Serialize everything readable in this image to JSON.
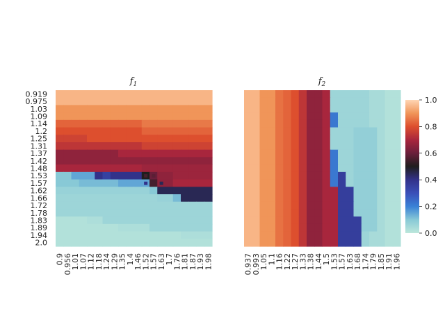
{
  "chart_data": [
    {
      "type": "heatmap",
      "title_base": "f",
      "title_sub": "1",
      "y_ticks": [
        "0.919",
        "0.975",
        "1.03",
        "1.09",
        "1.14",
        "1.2",
        "1.25",
        "1.31",
        "1.37",
        "1.42",
        "1.48",
        "1.53",
        "1.57",
        "1.62",
        "1.66",
        "1.72",
        "1.78",
        "1.83",
        "1.89",
        "1.94",
        "2.0"
      ],
      "x_ticks": [
        "0.9",
        "0.956",
        "1.01",
        "1.07",
        "1.12",
        "1.18",
        "1.24",
        "1.29",
        "1.35",
        "1.4",
        "1.46",
        "1.52",
        "1.57",
        "1.63",
        "1.7",
        "1.76",
        "1.81",
        "1.87",
        "1.93",
        "1.98"
      ],
      "description_rows": [
        [
          0.95,
          0.95,
          0.95,
          0.95,
          0.95,
          0.95,
          0.95,
          0.95,
          0.95,
          0.95,
          0.95,
          0.95,
          0.95,
          0.95,
          0.95,
          0.95,
          0.95,
          0.95,
          0.95,
          0.95
        ],
        [
          0.95,
          0.95,
          0.95,
          0.95,
          0.95,
          0.95,
          0.95,
          0.95,
          0.95,
          0.95,
          0.95,
          0.95,
          0.95,
          0.95,
          0.95,
          0.95,
          0.95,
          0.95,
          0.95,
          0.95
        ],
        [
          0.9,
          0.9,
          0.9,
          0.9,
          0.9,
          0.9,
          0.9,
          0.9,
          0.9,
          0.9,
          0.9,
          0.9,
          0.9,
          0.9,
          0.9,
          0.9,
          0.9,
          0.9,
          0.9,
          0.9
        ],
        [
          0.9,
          0.9,
          0.9,
          0.9,
          0.9,
          0.9,
          0.9,
          0.9,
          0.9,
          0.9,
          0.9,
          0.9,
          0.9,
          0.9,
          0.9,
          0.9,
          0.9,
          0.9,
          0.9,
          0.9
        ],
        [
          0.83,
          0.83,
          0.83,
          0.83,
          0.83,
          0.83,
          0.83,
          0.83,
          0.83,
          0.83,
          0.83,
          0.86,
          0.86,
          0.86,
          0.86,
          0.86,
          0.86,
          0.86,
          0.86,
          0.86
        ],
        [
          0.8,
          0.8,
          0.8,
          0.8,
          0.8,
          0.8,
          0.8,
          0.8,
          0.8,
          0.8,
          0.8,
          0.83,
          0.83,
          0.83,
          0.83,
          0.83,
          0.83,
          0.83,
          0.83,
          0.83
        ],
        [
          0.77,
          0.77,
          0.77,
          0.77,
          0.8,
          0.8,
          0.8,
          0.8,
          0.8,
          0.8,
          0.8,
          0.8,
          0.8,
          0.8,
          0.8,
          0.8,
          0.8,
          0.8,
          0.8,
          0.8
        ],
        [
          0.74,
          0.74,
          0.74,
          0.74,
          0.74,
          0.74,
          0.74,
          0.74,
          0.74,
          0.74,
          0.74,
          0.77,
          0.77,
          0.77,
          0.77,
          0.77,
          0.77,
          0.77,
          0.77,
          0.77
        ],
        [
          0.66,
          0.66,
          0.66,
          0.66,
          0.66,
          0.66,
          0.66,
          0.66,
          0.7,
          0.7,
          0.7,
          0.7,
          0.7,
          0.7,
          0.7,
          0.7,
          0.7,
          0.7,
          0.7,
          0.7
        ],
        [
          0.66,
          0.66,
          0.66,
          0.66,
          0.66,
          0.66,
          0.66,
          0.66,
          0.66,
          0.66,
          0.66,
          0.66,
          0.66,
          0.66,
          0.66,
          0.66,
          0.66,
          0.66,
          0.66,
          0.66
        ],
        [
          0.7,
          0.7,
          0.7,
          0.7,
          0.7,
          0.7,
          0.7,
          0.7,
          0.7,
          0.7,
          0.7,
          0.68,
          0.68,
          0.68,
          0.68,
          0.68,
          0.68,
          0.68,
          0.68,
          0.68
        ],
        [
          0.1,
          0.1,
          0.15,
          0.15,
          0.15,
          0.4,
          0.35,
          0.4,
          0.4,
          0.4,
          0.4,
          0.5,
          0.6,
          0.66,
          0.66,
          0.68,
          0.68,
          0.68,
          0.68,
          0.68
        ],
        [
          0.1,
          0.1,
          0.1,
          0.12,
          0.12,
          0.12,
          0.12,
          0.12,
          0.15,
          0.15,
          0.15,
          0.15,
          0.55,
          0.66,
          0.66,
          0.7,
          0.7,
          0.7,
          0.7,
          0.7
        ],
        [
          0.07,
          0.07,
          0.07,
          0.07,
          0.07,
          0.07,
          0.07,
          0.07,
          0.07,
          0.07,
          0.07,
          0.07,
          0.1,
          0.45,
          0.45,
          0.45,
          0.45,
          0.45,
          0.45,
          0.45
        ],
        [
          0.06,
          0.06,
          0.06,
          0.06,
          0.06,
          0.06,
          0.06,
          0.06,
          0.06,
          0.06,
          0.06,
          0.06,
          0.06,
          0.07,
          0.07,
          0.12,
          0.45,
          0.45,
          0.45,
          0.45
        ],
        [
          0.06,
          0.06,
          0.06,
          0.06,
          0.06,
          0.06,
          0.06,
          0.06,
          0.06,
          0.06,
          0.06,
          0.06,
          0.06,
          0.06,
          0.06,
          0.06,
          0.06,
          0.06,
          0.06,
          0.06
        ],
        [
          0.06,
          0.06,
          0.06,
          0.06,
          0.06,
          0.06,
          0.06,
          0.06,
          0.06,
          0.06,
          0.06,
          0.06,
          0.06,
          0.06,
          0.06,
          0.06,
          0.06,
          0.06,
          0.06,
          0.06
        ],
        [
          0.02,
          0.02,
          0.02,
          0.02,
          0.03,
          0.03,
          0.06,
          0.06,
          0.06,
          0.06,
          0.06,
          0.06,
          0.06,
          0.06,
          0.06,
          0.06,
          0.06,
          0.06,
          0.06,
          0.06
        ],
        [
          0.02,
          0.02,
          0.02,
          0.02,
          0.02,
          0.02,
          0.02,
          0.02,
          0.03,
          0.03,
          0.03,
          0.03,
          0.06,
          0.06,
          0.06,
          0.06,
          0.06,
          0.06,
          0.06,
          0.06
        ],
        [
          0.02,
          0.02,
          0.02,
          0.02,
          0.02,
          0.02,
          0.02,
          0.02,
          0.02,
          0.02,
          0.02,
          0.02,
          0.02,
          0.02,
          0.02,
          0.02,
          0.03,
          0.03,
          0.03,
          0.03
        ],
        [
          0.02,
          0.02,
          0.02,
          0.02,
          0.02,
          0.02,
          0.02,
          0.02,
          0.02,
          0.02,
          0.02,
          0.02,
          0.02,
          0.02,
          0.02,
          0.02,
          0.02,
          0.02,
          0.02,
          0.02
        ]
      ],
      "overlay_cells": [
        [
          11,
          11,
          0.55
        ],
        [
          11,
          12,
          0.58
        ],
        [
          12,
          11,
          0.4
        ],
        [
          12,
          12,
          0.55
        ],
        [
          12,
          13,
          0.45
        ],
        [
          13,
          13,
          0.45
        ]
      ]
    },
    {
      "type": "heatmap",
      "title_base": "f",
      "title_sub": "2",
      "x_ticks": [
        "0.937",
        "0.993",
        "1.05",
        "1.1",
        "1.16",
        "1.22",
        "1.27",
        "1.33",
        "1.38",
        "1.44",
        "1.5",
        "1.53",
        "1.57",
        "1.63",
        "1.68",
        "1.74",
        "1.79",
        "1.85",
        "1.91",
        "1.96"
      ],
      "columns": [
        {
          "v": 0.95
        },
        {
          "v": 0.95
        },
        {
          "v": 0.9
        },
        {
          "v": 0.9
        },
        {
          "v": 0.85
        },
        {
          "v": 0.83
        },
        {
          "v": 0.8
        },
        {
          "v": 0.74
        },
        {
          "v": 0.66
        },
        {
          "v": 0.66
        },
        {
          "v": 0.7
        },
        {
          "v": 0.06
        },
        {
          "v": 0.06
        },
        {
          "v": 0.06
        },
        {
          "v": 0.06
        },
        {
          "v": 0.06
        },
        {
          "v": 0.04
        },
        {
          "v": 0.04
        },
        {
          "v": 0.02
        },
        {
          "v": 0.02
        }
      ],
      "boundary_rows": [
        {
          "row": 0,
          "col": 11.0
        },
        {
          "row": 4,
          "col": 11.0
        },
        {
          "row": 5,
          "col": 10.8
        },
        {
          "row": 6,
          "col": 10.9
        },
        {
          "row": 7,
          "col": 10.8
        },
        {
          "row": 8,
          "col": 11.0
        },
        {
          "row": 9,
          "col": 11.2
        },
        {
          "row": 10,
          "col": 11.2
        },
        {
          "row": 11,
          "col": 11.4
        },
        {
          "row": 12,
          "col": 11.8
        },
        {
          "row": 13,
          "col": 12.3
        },
        {
          "row": 14,
          "col": 12.6
        },
        {
          "row": 15,
          "col": 12.8
        },
        {
          "row": 16,
          "col": 12.8
        },
        {
          "row": 17,
          "col": 12.9
        },
        {
          "row": 18,
          "col": 12.9
        },
        {
          "row": 19,
          "col": 12.9
        },
        {
          "row": 20,
          "col": 12.9
        }
      ]
    }
  ],
  "colorbar": {
    "ticks": [
      "0.0",
      "0.2",
      "0.4",
      "0.6",
      "0.8",
      "1.0"
    ],
    "tick_values": [
      0.0,
      0.2,
      0.4,
      0.6,
      0.8,
      1.0
    ],
    "vmin": 0.0,
    "vmax": 1.0,
    "palette": "icefire",
    "stops": [
      {
        "v": 0.0,
        "c": "#bde7db"
      },
      {
        "v": 0.1,
        "c": "#88c9d6"
      },
      {
        "v": 0.2,
        "c": "#3a82d6"
      },
      {
        "v": 0.3,
        "c": "#3a4fb8"
      },
      {
        "v": 0.4,
        "c": "#32328a"
      },
      {
        "v": 0.5,
        "c": "#1f1e1e"
      },
      {
        "v": 0.6,
        "c": "#6a1f3b"
      },
      {
        "v": 0.7,
        "c": "#a8263d"
      },
      {
        "v": 0.8,
        "c": "#dd4f2e"
      },
      {
        "v": 0.9,
        "c": "#f09559"
      },
      {
        "v": 1.0,
        "c": "#ffd5b4"
      }
    ]
  }
}
